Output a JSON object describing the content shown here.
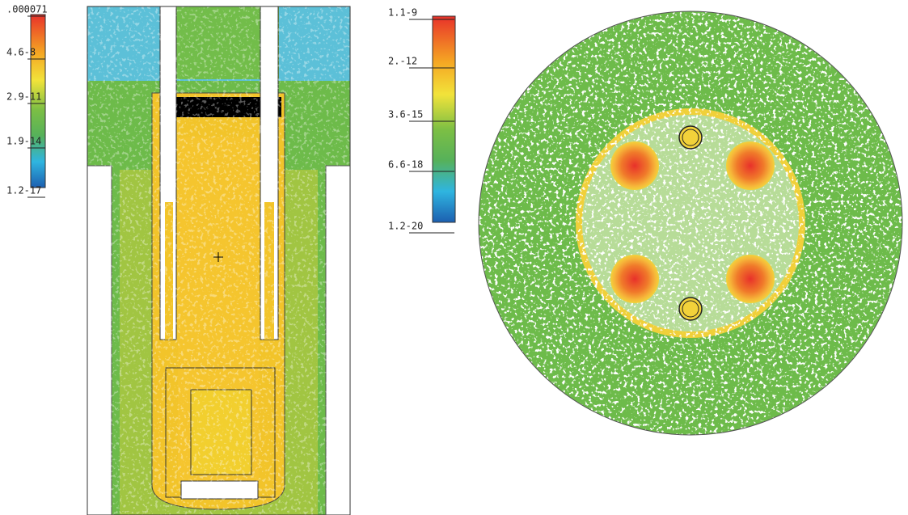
{
  "left_colorbar": {
    "labels": [
      ".000071",
      "4.6-8",
      "2.9-11",
      "1.9-14",
      "1.2-17"
    ]
  },
  "right_colorbar": {
    "labels": [
      "1.1-9",
      "2.-12",
      "3.6-15",
      "6.6-18",
      "1.2-20"
    ]
  }
}
